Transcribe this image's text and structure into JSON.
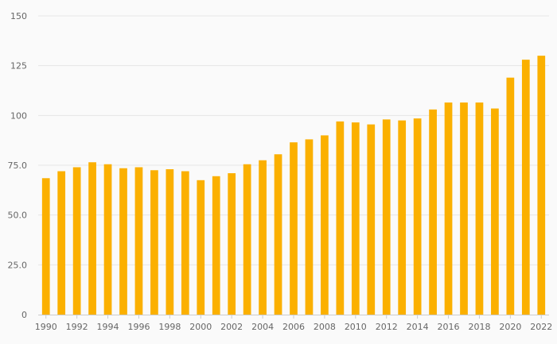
{
  "chart_data": {
    "type": "bar",
    "title": "",
    "xlabel": "",
    "ylabel": "",
    "ylim": [
      0,
      150
    ],
    "yticks": [
      0,
      25,
      50,
      75,
      100,
      125,
      150
    ],
    "ytick_labels": [
      "0",
      "25.0",
      "50.0",
      "75.0",
      "100",
      "125",
      "150"
    ],
    "grid": true,
    "legend": "none",
    "bar_color": "#fbb000",
    "categories": [
      "1990",
      "1991",
      "1992",
      "1993",
      "1994",
      "1995",
      "1996",
      "1997",
      "1998",
      "1999",
      "2000",
      "2001",
      "2002",
      "2003",
      "2004",
      "2005",
      "2006",
      "2007",
      "2008",
      "2009",
      "2010",
      "2011",
      "2012",
      "2013",
      "2014",
      "2015",
      "2016",
      "2017",
      "2018",
      "2019",
      "2020",
      "2021",
      "2022"
    ],
    "xtick_labels": [
      "1990",
      "1992",
      "1994",
      "1996",
      "1998",
      "2000",
      "2002",
      "2004",
      "2006",
      "2008",
      "2010",
      "2012",
      "2014",
      "2016",
      "2018",
      "2020",
      "2022"
    ],
    "values": [
      68.5,
      72,
      74,
      76.5,
      75.5,
      73.5,
      74,
      72.5,
      73,
      72,
      67.5,
      69.5,
      71,
      75.5,
      77.5,
      80.5,
      86.5,
      88,
      90,
      97,
      96.5,
      95.5,
      98,
      97.5,
      98.5,
      103,
      106.5,
      106.5,
      106.5,
      103.5,
      119,
      128,
      130
    ]
  }
}
